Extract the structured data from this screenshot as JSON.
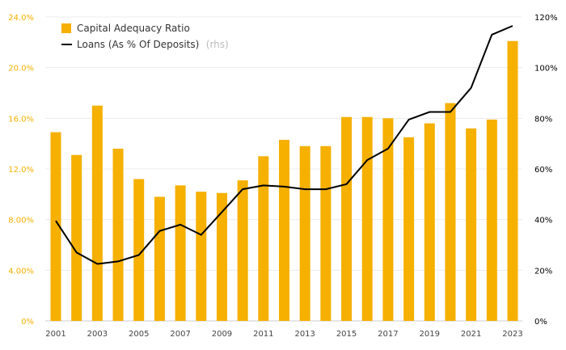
{
  "chart_data": {
    "type": "bar",
    "categories": [
      "2001",
      "2002",
      "2003",
      "2004",
      "2005",
      "2006",
      "2007",
      "2008",
      "2009",
      "2010",
      "2011",
      "2012",
      "2013",
      "2014",
      "2015",
      "2016",
      "2017",
      "2018",
      "2019",
      "2020",
      "2021",
      "2022",
      "2023"
    ],
    "x_tick_labels": [
      "2001",
      "2003",
      "2005",
      "2007",
      "2009",
      "2011",
      "2013",
      "2015",
      "2017",
      "2019",
      "2021",
      "2023"
    ],
    "series": [
      {
        "name": "Capital Adequacy Ratio",
        "type": "bar",
        "axis": "left",
        "color": "#f5b000",
        "values": [
          14.9,
          13.1,
          17.0,
          13.6,
          11.2,
          9.8,
          10.7,
          10.2,
          10.1,
          11.1,
          13.0,
          14.3,
          13.8,
          13.8,
          16.1,
          16.1,
          16.0,
          14.5,
          15.6,
          17.2,
          15.2,
          15.9,
          22.1
        ]
      },
      {
        "name": "Loans (As % Of Deposits)",
        "name_note": "(rhs)",
        "type": "line",
        "axis": "right",
        "color": "#000000",
        "values": [
          39.5,
          27,
          22.5,
          23.5,
          26,
          35.5,
          38,
          34,
          43,
          52,
          53.5,
          53,
          52,
          52,
          54,
          63.5,
          68,
          79.5,
          82.5,
          82.5,
          92,
          113,
          116.5
        ]
      }
    ],
    "y_left": {
      "min": 0,
      "max": 24,
      "ticks": [
        "0%",
        "4.00%",
        "8.00%",
        "12.0%",
        "16.0%",
        "20.0%",
        "24.0%"
      ],
      "tick_values": [
        0,
        4,
        8,
        12,
        16,
        20,
        24
      ]
    },
    "y_right": {
      "min": 0,
      "max": 120,
      "ticks": [
        "0%",
        "20%",
        "40%",
        "60%",
        "80%",
        "100%",
        "120%"
      ],
      "tick_values": [
        0,
        20,
        40,
        60,
        80,
        100,
        120
      ]
    },
    "grid": true,
    "legend_position": "top-left"
  }
}
